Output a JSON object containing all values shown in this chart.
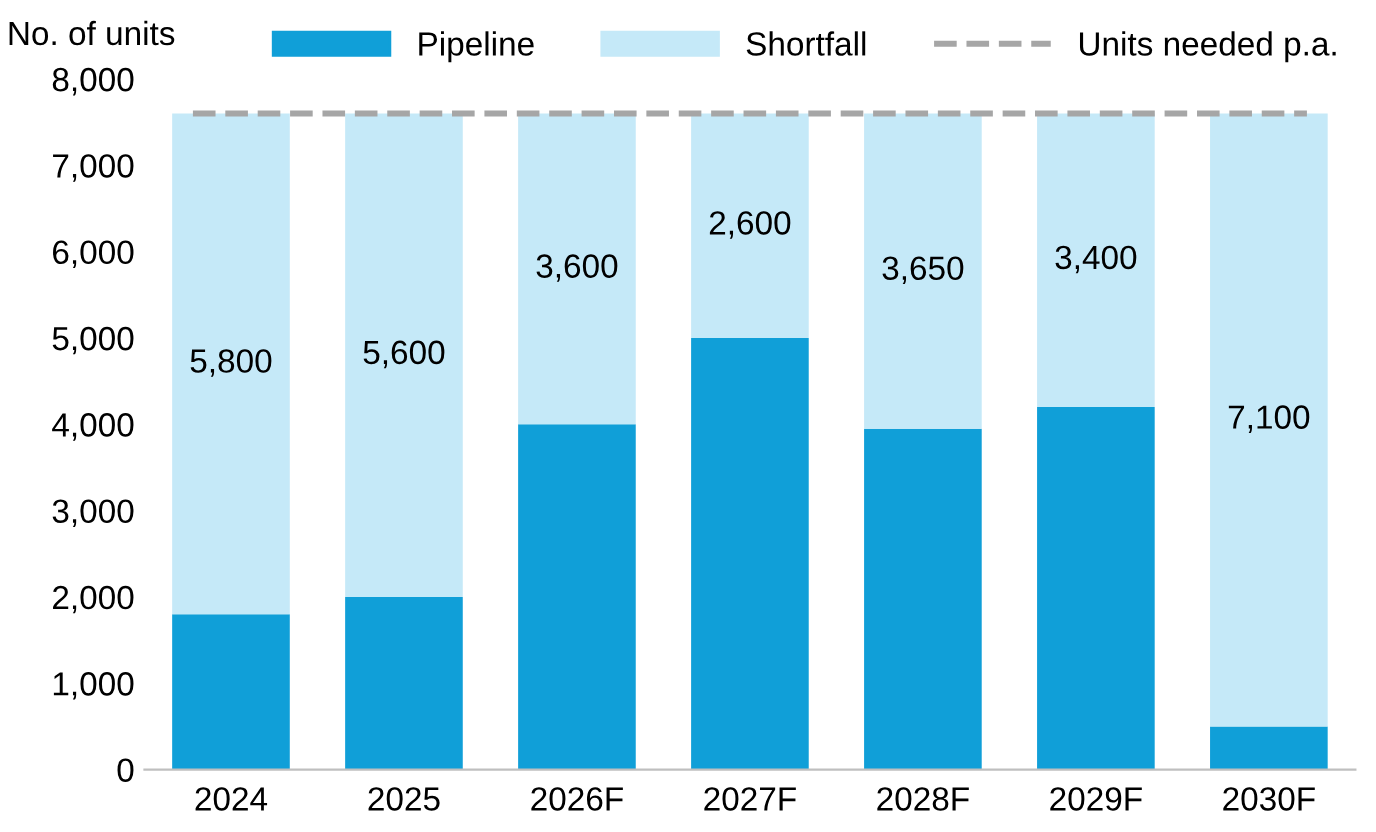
{
  "chart_data": {
    "type": "bar",
    "stacked": true,
    "ylabel": "No. of units",
    "categories": [
      "2024",
      "2025",
      "2026F",
      "2027F",
      "2028F",
      "2029F",
      "2030F"
    ],
    "series": [
      {
        "name": "Pipeline",
        "color": "#109fd8",
        "values": [
          1800,
          2000,
          4000,
          5000,
          3950,
          4200,
          500
        ]
      },
      {
        "name": "Shortfall",
        "color": "#c5e9f8",
        "values": [
          5800,
          5600,
          3600,
          2600,
          3650,
          3400,
          7100
        ],
        "value_labels": [
          "5,800",
          "5,600",
          "3,600",
          "2,600",
          "3,650",
          "3,400",
          "7,100"
        ]
      }
    ],
    "ref_lines": [
      {
        "axis": "y",
        "value": 7600,
        "label": "Units needed p.a.",
        "color": "#a6a6a6",
        "line_style": "dashed"
      }
    ],
    "ylim": [
      0,
      8000
    ],
    "yticks": [
      {
        "value": 0,
        "label": "0"
      },
      {
        "value": 1000,
        "label": "1,000"
      },
      {
        "value": 2000,
        "label": "2,000"
      },
      {
        "value": 3000,
        "label": "3,000"
      },
      {
        "value": 4000,
        "label": "4,000"
      },
      {
        "value": 5000,
        "label": "5,000"
      },
      {
        "value": 6000,
        "label": "6,000"
      },
      {
        "value": 7000,
        "label": "7,000"
      },
      {
        "value": 8000,
        "label": "8,000"
      }
    ],
    "grid": false,
    "legend": "top"
  }
}
